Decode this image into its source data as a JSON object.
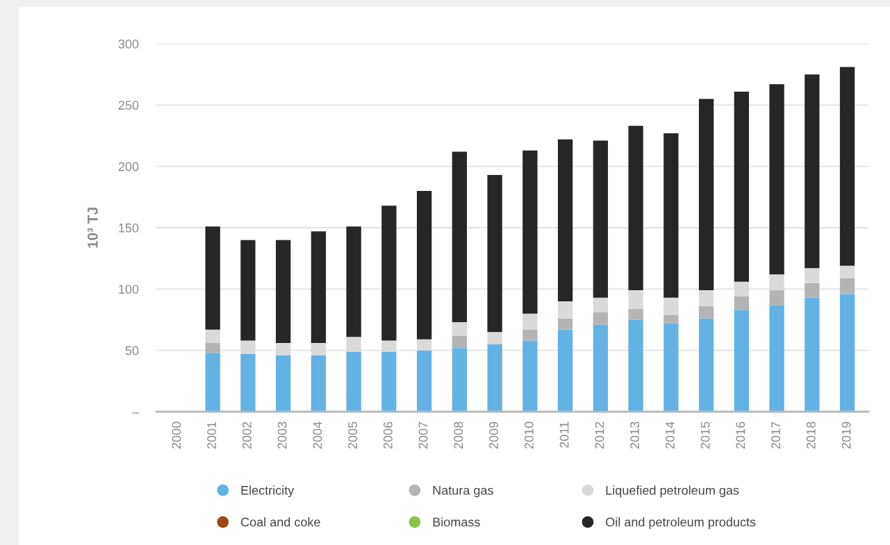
{
  "chart_data": {
    "type": "bar",
    "stacked": true,
    "ylabel": "10³ TJ",
    "categories": [
      "2000",
      "2001",
      "2002",
      "2003",
      "2004",
      "2005",
      "2006",
      "2007",
      "2008",
      "2009",
      "2010",
      "2011",
      "2012",
      "2013",
      "2014",
      "2015",
      "2016",
      "2017",
      "2018",
      "2019"
    ],
    "series": [
      {
        "name": "Electricity",
        "color": "#62b3e4",
        "values": [
          null,
          48,
          47,
          46,
          46,
          49,
          49,
          50,
          52,
          55,
          58,
          67,
          71,
          75,
          72,
          76,
          83,
          87,
          93,
          96
        ]
      },
      {
        "name": "Natura gas",
        "color": "#b4b4b4",
        "values": [
          null,
          8,
          0,
          0,
          0,
          0,
          0,
          0,
          10,
          0,
          9,
          9,
          10,
          9,
          7,
          10,
          11,
          12,
          12,
          13
        ]
      },
      {
        "name": "Liquefied petroleum gas",
        "color": "#dadada",
        "values": [
          null,
          11,
          11,
          10,
          10,
          12,
          9,
          9,
          11,
          10,
          13,
          14,
          12,
          15,
          14,
          13,
          12,
          13,
          12,
          10
        ]
      },
      {
        "name": "Coal and coke",
        "color": "#9a4a1a",
        "values": [
          null,
          null,
          null,
          null,
          null,
          null,
          null,
          null,
          null,
          null,
          null,
          null,
          null,
          null,
          null,
          null,
          null,
          null,
          null,
          null
        ]
      },
      {
        "name": "Biomass",
        "color": "#8bc34a",
        "values": [
          null,
          null,
          null,
          null,
          null,
          null,
          null,
          null,
          null,
          null,
          null,
          null,
          null,
          null,
          null,
          null,
          null,
          null,
          null,
          null
        ]
      },
      {
        "name": "Oil and petroleum products",
        "color": "#262626",
        "values": [
          null,
          84,
          82,
          84,
          91,
          90,
          110,
          121,
          139,
          128,
          133,
          132,
          128,
          134,
          134,
          156,
          155,
          155,
          158,
          162
        ]
      }
    ],
    "ylim": [
      0,
      300
    ],
    "yticks": [
      {
        "value": 0,
        "label": "–"
      },
      50,
      100,
      150,
      200,
      250,
      300
    ],
    "grid": "y",
    "legend": "bottom"
  }
}
